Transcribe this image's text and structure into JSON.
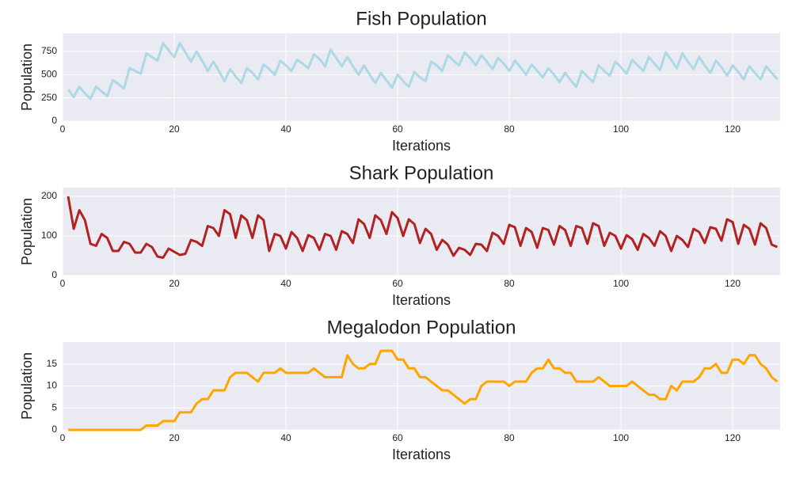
{
  "chart_data": [
    {
      "type": "line",
      "title": "Fish Population",
      "xlabel": "Iterations",
      "ylabel": "Population",
      "color": "#add8e6",
      "xlim": [
        0,
        128.5
      ],
      "ylim": [
        0,
        946
      ],
      "xticks": [
        0,
        20,
        40,
        60,
        80,
        100,
        120
      ],
      "yticks": [
        0,
        250,
        500,
        750
      ],
      "grid": true,
      "x": [
        1,
        2,
        3,
        4,
        5,
        6,
        7,
        8,
        9,
        10,
        11,
        12,
        13,
        14,
        15,
        16,
        17,
        18,
        19,
        20,
        21,
        22,
        23,
        24,
        25,
        26,
        27,
        28,
        29,
        30,
        31,
        32,
        33,
        34,
        35,
        36,
        37,
        38,
        39,
        40,
        41,
        42,
        43,
        44,
        45,
        46,
        47,
        48,
        49,
        50,
        51,
        52,
        53,
        54,
        55,
        56,
        57,
        58,
        59,
        60,
        61,
        62,
        63,
        64,
        65,
        66,
        67,
        68,
        69,
        70,
        71,
        72,
        73,
        74,
        75,
        76,
        77,
        78,
        79,
        80,
        81,
        82,
        83,
        84,
        85,
        86,
        87,
        88,
        89,
        90,
        91,
        92,
        93,
        94,
        95,
        96,
        97,
        98,
        99,
        100,
        101,
        102,
        103,
        104,
        105,
        106,
        107,
        108,
        109,
        110,
        111,
        112,
        113,
        114,
        115,
        116,
        117,
        118,
        119,
        120,
        121,
        122,
        123,
        124,
        125,
        126,
        127,
        128
      ],
      "values": [
        340,
        260,
        370,
        300,
        240,
        370,
        320,
        270,
        440,
        400,
        350,
        570,
        540,
        510,
        730,
        690,
        650,
        840,
        760,
        690,
        840,
        740,
        640,
        750,
        650,
        540,
        640,
        540,
        430,
        560,
        480,
        410,
        570,
        520,
        450,
        610,
        560,
        500,
        650,
        600,
        540,
        660,
        620,
        570,
        720,
        670,
        590,
        770,
        680,
        590,
        690,
        590,
        500,
        600,
        500,
        410,
        520,
        440,
        360,
        500,
        430,
        370,
        530,
        470,
        430,
        640,
        600,
        540,
        710,
        650,
        600,
        740,
        680,
        600,
        710,
        640,
        560,
        680,
        620,
        540,
        650,
        580,
        500,
        610,
        540,
        470,
        570,
        500,
        420,
        520,
        440,
        370,
        540,
        480,
        420,
        600,
        540,
        490,
        640,
        580,
        510,
        660,
        600,
        540,
        690,
        620,
        550,
        740,
        660,
        570,
        730,
        640,
        560,
        690,
        600,
        520,
        650,
        580,
        490,
        600,
        530,
        450,
        590,
        520,
        450,
        590,
        520,
        450
      ]
    },
    {
      "type": "line",
      "title": "Shark Population",
      "xlabel": "Iterations",
      "ylabel": "Population",
      "color": "#b22222",
      "xlim": [
        0,
        128.5
      ],
      "ylim": [
        0,
        222
      ],
      "xticks": [
        0,
        20,
        40,
        60,
        80,
        100,
        120
      ],
      "yticks": [
        0,
        100,
        200
      ],
      "grid": true,
      "x": [
        1,
        2,
        3,
        4,
        5,
        6,
        7,
        8,
        9,
        10,
        11,
        12,
        13,
        14,
        15,
        16,
        17,
        18,
        19,
        20,
        21,
        22,
        23,
        24,
        25,
        26,
        27,
        28,
        29,
        30,
        31,
        32,
        33,
        34,
        35,
        36,
        37,
        38,
        39,
        40,
        41,
        42,
        43,
        44,
        45,
        46,
        47,
        48,
        49,
        50,
        51,
        52,
        53,
        54,
        55,
        56,
        57,
        58,
        59,
        60,
        61,
        62,
        63,
        64,
        65,
        66,
        67,
        68,
        69,
        70,
        71,
        72,
        73,
        74,
        75,
        76,
        77,
        78,
        79,
        80,
        81,
        82,
        83,
        84,
        85,
        86,
        87,
        88,
        89,
        90,
        91,
        92,
        93,
        94,
        95,
        96,
        97,
        98,
        99,
        100,
        101,
        102,
        103,
        104,
        105,
        106,
        107,
        108,
        109,
        110,
        111,
        112,
        113,
        114,
        115,
        116,
        117,
        118,
        119,
        120,
        121,
        122,
        123,
        124,
        125,
        126,
        127,
        128
      ],
      "values": [
        200,
        118,
        165,
        140,
        80,
        75,
        105,
        95,
        62,
        62,
        85,
        80,
        58,
        58,
        80,
        72,
        48,
        45,
        68,
        60,
        52,
        55,
        90,
        85,
        75,
        125,
        120,
        100,
        165,
        155,
        95,
        152,
        140,
        95,
        152,
        140,
        62,
        105,
        100,
        68,
        110,
        95,
        62,
        102,
        95,
        65,
        105,
        100,
        65,
        112,
        105,
        82,
        142,
        130,
        95,
        152,
        140,
        105,
        160,
        145,
        100,
        142,
        130,
        82,
        118,
        105,
        65,
        90,
        78,
        50,
        70,
        65,
        52,
        80,
        78,
        62,
        108,
        100,
        80,
        128,
        122,
        75,
        120,
        110,
        70,
        120,
        115,
        78,
        125,
        115,
        75,
        125,
        120,
        80,
        132,
        125,
        75,
        108,
        100,
        68,
        102,
        92,
        65,
        105,
        95,
        75,
        112,
        100,
        62,
        100,
        90,
        72,
        118,
        110,
        82,
        122,
        118,
        88,
        142,
        135,
        80,
        128,
        118,
        78,
        132,
        120,
        78,
        72
      ]
    },
    {
      "type": "line",
      "title": "Megalodon Population",
      "xlabel": "Iterations",
      "ylabel": "Population",
      "color": "#ffa500",
      "xlim": [
        0,
        128.5
      ],
      "ylim": [
        0,
        20
      ],
      "xticks": [
        0,
        20,
        40,
        60,
        80,
        100,
        120
      ],
      "yticks": [
        0,
        5,
        10,
        15
      ],
      "grid": true,
      "x": [
        1,
        2,
        3,
        4,
        5,
        6,
        7,
        8,
        9,
        10,
        11,
        12,
        13,
        14,
        15,
        16,
        17,
        18,
        19,
        20,
        21,
        22,
        23,
        24,
        25,
        26,
        27,
        28,
        29,
        30,
        31,
        32,
        33,
        34,
        35,
        36,
        37,
        38,
        39,
        40,
        41,
        42,
        43,
        44,
        45,
        46,
        47,
        48,
        49,
        50,
        51,
        52,
        53,
        54,
        55,
        56,
        57,
        58,
        59,
        60,
        61,
        62,
        63,
        64,
        65,
        66,
        67,
        68,
        69,
        70,
        71,
        72,
        73,
        74,
        75,
        76,
        77,
        78,
        79,
        80,
        81,
        82,
        83,
        84,
        85,
        86,
        87,
        88,
        89,
        90,
        91,
        92,
        93,
        94,
        95,
        96,
        97,
        98,
        99,
        100,
        101,
        102,
        103,
        104,
        105,
        106,
        107,
        108,
        109,
        110,
        111,
        112,
        113,
        114,
        115,
        116,
        117,
        118,
        119,
        120,
        121,
        122,
        123,
        124,
        125,
        126,
        127,
        128
      ],
      "values": [
        0,
        0,
        0,
        0,
        0,
        0,
        0,
        0,
        0,
        0,
        0,
        0,
        0,
        0,
        1,
        1,
        1,
        2,
        2,
        2,
        4,
        4,
        4,
        6,
        7,
        7,
        9,
        9,
        9,
        12,
        13,
        13,
        13,
        12,
        11,
        13,
        13,
        13,
        14,
        13,
        13,
        13,
        13,
        13,
        14,
        13,
        12,
        12,
        12,
        12,
        17,
        15,
        14,
        14,
        15,
        15,
        18,
        18,
        18,
        16,
        16,
        14,
        14,
        12,
        12,
        11,
        10,
        9,
        9,
        8,
        7,
        6,
        7,
        7,
        10,
        11,
        11,
        11,
        11,
        10,
        11,
        11,
        11,
        13,
        14,
        14,
        16,
        14,
        14,
        13,
        13,
        11,
        11,
        11,
        11,
        12,
        11,
        10,
        10,
        10,
        10,
        11,
        10,
        9,
        8,
        8,
        7,
        7,
        10,
        9,
        11,
        11,
        11,
        12,
        14,
        14,
        15,
        13,
        13,
        16,
        16,
        15,
        17,
        17,
        15,
        14,
        12,
        11
      ]
    }
  ]
}
